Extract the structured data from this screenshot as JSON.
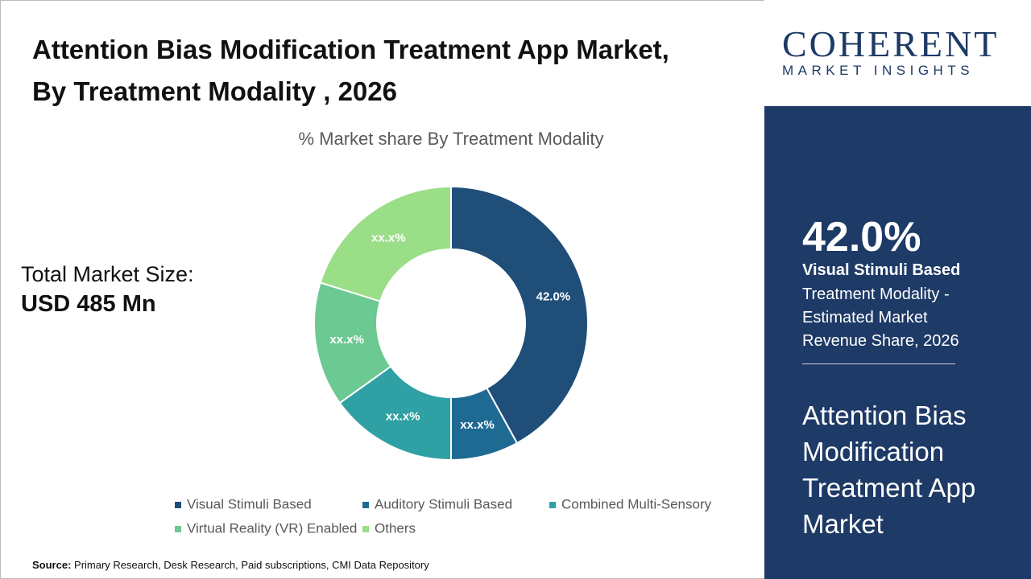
{
  "chart_data": {
    "type": "donut",
    "title": "Attention Bias Modification Treatment App Market, By Treatment Modality , 2026",
    "subtitle": "% Market share By Treatment Modality",
    "categories": [
      "Visual Stimuli Based",
      "Auditory Stimuli Based",
      "Combined Multi-Sensory",
      "Virtual Reality (VR) Enabled",
      "Others"
    ],
    "values": [
      42.0,
      8.0,
      15.1,
      14.7,
      20.2
    ],
    "value_labels": [
      "42.0%",
      "xx.x%",
      "xx.x%",
      "xx.x%",
      "xx.x%"
    ],
    "colors": [
      "#1f4e79",
      "#1f6a93",
      "#2fa0a3",
      "#6cc991",
      "#9ade88"
    ]
  },
  "market_size": {
    "label": "Total Market Size:",
    "value": "USD 485 Mn"
  },
  "source": {
    "label": "Source:",
    "text": "Primary Research, Desk Research, Paid subscriptions, CMI Data Repository"
  },
  "logo": {
    "name": "COHERENT",
    "tagline": "MARKET INSIGHTS"
  },
  "side_panel": {
    "stat": "42.0%",
    "stat_segment": "Visual Stimuli Based",
    "stat_text": "Treatment Modality - Estimated Market Revenue Share, 2026",
    "market_name": "Attention Bias Modification Treatment App Market"
  }
}
